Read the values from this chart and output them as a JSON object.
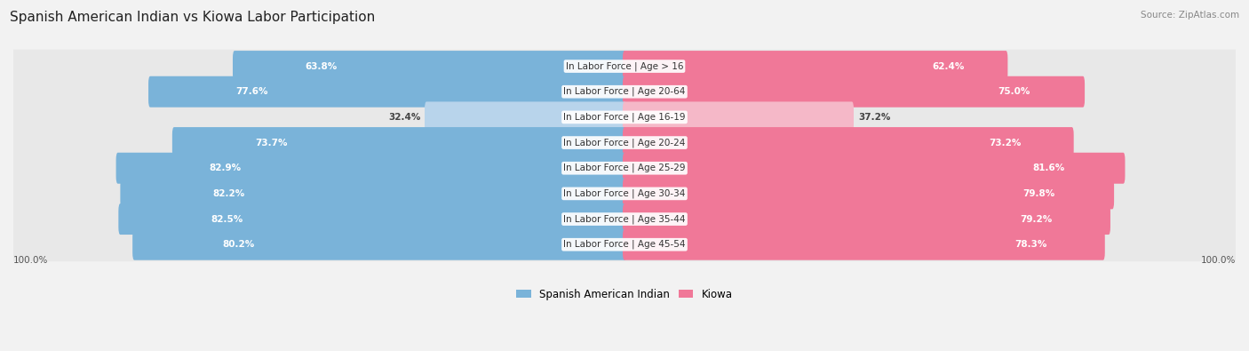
{
  "title": "Spanish American Indian vs Kiowa Labor Participation",
  "source": "Source: ZipAtlas.com",
  "categories": [
    "In Labor Force | Age > 16",
    "In Labor Force | Age 20-64",
    "In Labor Force | Age 16-19",
    "In Labor Force | Age 20-24",
    "In Labor Force | Age 25-29",
    "In Labor Force | Age 30-34",
    "In Labor Force | Age 35-44",
    "In Labor Force | Age 45-54"
  ],
  "spanish_values": [
    63.8,
    77.6,
    32.4,
    73.7,
    82.9,
    82.2,
    82.5,
    80.2
  ],
  "kiowa_values": [
    62.4,
    75.0,
    37.2,
    73.2,
    81.6,
    79.8,
    79.2,
    78.3
  ],
  "spanish_color": "#7ab3d9",
  "kiowa_color": "#f07898",
  "spanish_color_light": "#b8d4eb",
  "kiowa_color_light": "#f5b8c8",
  "row_bg_color": "#e8e8e8",
  "bg_color": "#f2f2f2",
  "title_fontsize": 11,
  "label_fontsize": 7.5,
  "value_fontsize": 7.5,
  "legend_fontsize": 8.5,
  "axis_label_fontsize": 7.5,
  "max_val": 100.0,
  "legend_labels": [
    "Spanish American Indian",
    "Kiowa"
  ]
}
